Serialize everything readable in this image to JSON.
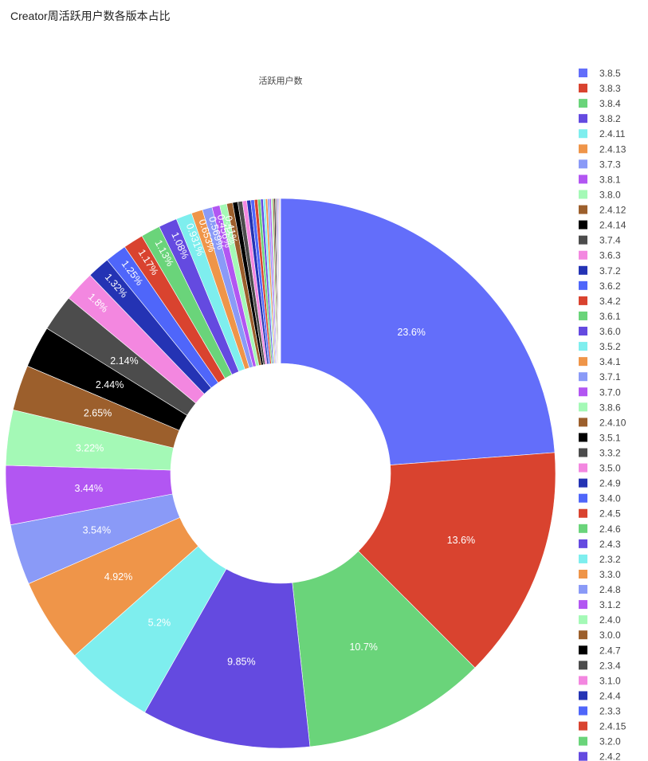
{
  "page_title": "Creator周活跃用户数各版本占比",
  "chart_data": {
    "type": "pie",
    "hole": 0.4,
    "label": "活跃用户数",
    "legend_position": "right",
    "slices": [
      {
        "label": "3.8.5",
        "value": 23.6,
        "color": "#636efa",
        "text": "23.6%"
      },
      {
        "label": "3.8.3",
        "value": 13.6,
        "color": "#d9432f",
        "text": "13.6%"
      },
      {
        "label": "3.8.4",
        "value": 10.7,
        "color": "#6ad47a",
        "text": "10.7%"
      },
      {
        "label": "3.8.2",
        "value": 9.85,
        "color": "#644ae0",
        "text": "9.85%"
      },
      {
        "label": "2.4.11",
        "value": 5.2,
        "color": "#7eeeee",
        "text": "5.2%"
      },
      {
        "label": "2.4.13",
        "value": 4.92,
        "color": "#ef9549",
        "text": "4.92%"
      },
      {
        "label": "3.7.3",
        "value": 3.54,
        "color": "#8a9af7",
        "text": "3.54%"
      },
      {
        "label": "3.8.1",
        "value": 3.44,
        "color": "#b256f2",
        "text": "3.44%"
      },
      {
        "label": "3.8.0",
        "value": 3.22,
        "color": "#a4f9b6",
        "text": "3.22%"
      },
      {
        "label": "2.4.12",
        "value": 2.65,
        "color": "#9c5f2c",
        "text": "2.65%"
      },
      {
        "label": "2.4.14",
        "value": 2.44,
        "color": "#000000",
        "text": "2.44%"
      },
      {
        "label": "3.7.4",
        "value": 2.14,
        "color": "#4c4c4c",
        "text": "2.14%"
      },
      {
        "label": "3.6.3",
        "value": 1.8,
        "color": "#f387e0",
        "text": "1.8%"
      },
      {
        "label": "3.7.2",
        "value": 1.32,
        "color": "#2433b4",
        "text": "1.32%"
      },
      {
        "label": "3.6.2",
        "value": 1.25,
        "color": "#4f66fa",
        "text": "1.25%"
      },
      {
        "label": "3.4.2",
        "value": 1.17,
        "color": "#d9432f",
        "text": "1.17%"
      },
      {
        "label": "3.6.1",
        "value": 1.13,
        "color": "#6ad47a",
        "text": "1.13%"
      },
      {
        "label": "3.6.0",
        "value": 1.08,
        "color": "#644ae0",
        "text": "1.08%"
      },
      {
        "label": "3.5.2",
        "value": 0.931,
        "color": "#7eeeee",
        "text": "0.931%"
      },
      {
        "label": "3.4.1",
        "value": 0.653,
        "color": "#ef9549",
        "text": "0.653%"
      },
      {
        "label": "3.7.1",
        "value": 0.569,
        "color": "#8a9af7",
        "text": "0.569%"
      },
      {
        "label": "3.7.0",
        "value": 0.456,
        "color": "#b256f2",
        "text": "0.456%"
      },
      {
        "label": "3.8.6",
        "value": 0.41,
        "color": "#a4f9b6",
        "text": "0.41%"
      },
      {
        "label": "2.4.10",
        "value": 0.346,
        "color": "#9c5f2c",
        "text": "0.346%"
      },
      {
        "label": "3.5.1",
        "value": 0.3,
        "color": "#000000",
        "text": "0.3%"
      },
      {
        "label": "3.3.2",
        "value": 0.27,
        "color": "#4c4c4c",
        "text": "0.27%"
      },
      {
        "label": "3.5.0",
        "value": 0.25,
        "color": "#f387e0",
        "text": "0.25%"
      },
      {
        "label": "2.4.9",
        "value": 0.23,
        "color": "#2433b4",
        "text": "0.23%"
      },
      {
        "label": "3.4.0",
        "value": 0.21,
        "color": "#4f66fa",
        "text": "0.21%"
      },
      {
        "label": "2.4.5",
        "value": 0.19,
        "color": "#d9432f",
        "text": "0.19%"
      },
      {
        "label": "2.4.6",
        "value": 0.17,
        "color": "#6ad47a",
        "text": "0.17%"
      },
      {
        "label": "2.4.3",
        "value": 0.15,
        "color": "#644ae0",
        "text": "0.15%"
      },
      {
        "label": "2.3.2",
        "value": 0.13,
        "color": "#7eeeee",
        "text": "0.13%"
      },
      {
        "label": "3.3.0",
        "value": 0.12,
        "color": "#ef9549",
        "text": "0.12%"
      },
      {
        "label": "2.4.8",
        "value": 0.11,
        "color": "#8a9af7",
        "text": "0.11%"
      },
      {
        "label": "3.1.2",
        "value": 0.1,
        "color": "#b256f2",
        "text": "0.1%"
      },
      {
        "label": "2.4.0",
        "value": 0.09,
        "color": "#a4f9b6",
        "text": "0.09%"
      },
      {
        "label": "3.0.0",
        "value": 0.08,
        "color": "#9c5f2c",
        "text": "0.08%"
      },
      {
        "label": "2.4.7",
        "value": 0.07,
        "color": "#000000",
        "text": "0.07%"
      },
      {
        "label": "2.3.4",
        "value": 0.06,
        "color": "#4c4c4c",
        "text": "0.06%"
      },
      {
        "label": "3.1.0",
        "value": 0.05,
        "color": "#f387e0",
        "text": "0.05%"
      },
      {
        "label": "2.4.4",
        "value": 0.05,
        "color": "#2433b4",
        "text": "0.05%"
      },
      {
        "label": "2.3.3",
        "value": 0.04,
        "color": "#4f66fa",
        "text": "0.04%"
      },
      {
        "label": "2.4.15",
        "value": 0.04,
        "color": "#d9432f",
        "text": "0.04%"
      },
      {
        "label": "3.2.0",
        "value": 0.03,
        "color": "#6ad47a",
        "text": "0.03%"
      },
      {
        "label": "2.4.2",
        "value": 0.03,
        "color": "#644ae0",
        "text": "0.03%"
      }
    ]
  }
}
